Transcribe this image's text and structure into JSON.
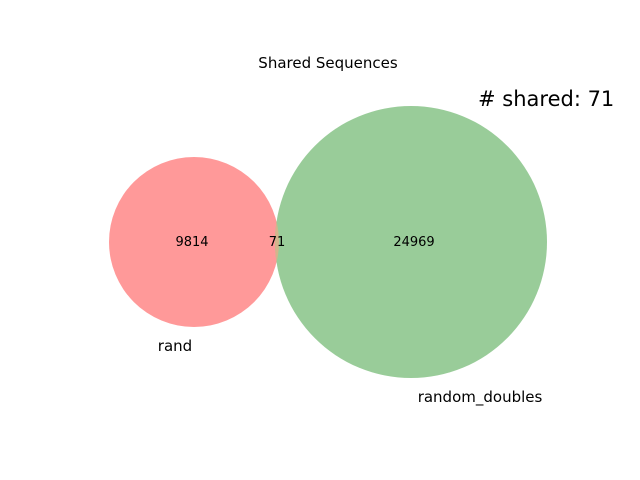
{
  "title": "Shared Sequences",
  "annotation": "# shared: 71",
  "sets": [
    {
      "name": "rand",
      "only_count": "9814",
      "color": "#ff9999"
    },
    {
      "name": "random_doubles",
      "only_count": "24969",
      "color": "#99cc99"
    }
  ],
  "intersection": {
    "count": "71",
    "color": "#d4b48c"
  }
}
